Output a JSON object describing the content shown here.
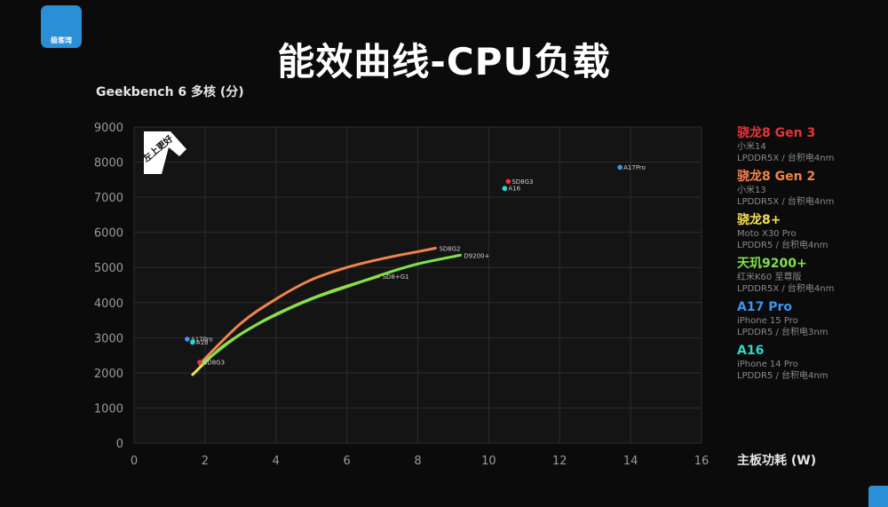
{
  "header": {
    "logo_text": "极客湾",
    "title": "能效曲线-CPU负载",
    "y_axis_label": "Geekbench 6 多核 (分)",
    "x_axis_label": "主板功耗 (W)",
    "badge_text": "左上更好"
  },
  "legend": [
    {
      "name": "骁龙8 Gen 3",
      "device": "小米14",
      "spec": "LPDDR5X / 台积电4nm",
      "color": "#e8343b"
    },
    {
      "name": "骁龙8 Gen 2",
      "device": "小米13",
      "spec": "LPDDR5X / 台积电4nm",
      "color": "#f3844b"
    },
    {
      "name": "骁龙8+",
      "device": "Moto X30 Pro",
      "spec": "LPDDR5 / 台积电4nm",
      "color": "#f5e04f"
    },
    {
      "name": "天玑9200+",
      "device": "红米K60 至尊版",
      "spec": "LPDDR5X / 台积电4nm",
      "color": "#7fe24a"
    },
    {
      "name": "A17 Pro",
      "device": "iPhone 15 Pro",
      "spec": "LPDDR5 / 台积电3nm",
      "color": "#3d95ee"
    },
    {
      "name": "A16",
      "device": "iPhone 14 Pro",
      "spec": "LPDDR5 / 台积电4nm",
      "color": "#2ed8c8"
    }
  ],
  "chart_data": {
    "type": "scatter",
    "title": "能效曲线-CPU负载",
    "xlabel": "主板功耗 (W)",
    "ylabel": "Geekbench 6 多核 (分)",
    "xlim": [
      0,
      16
    ],
    "ylim": [
      0,
      9000
    ],
    "x_ticks": [
      0,
      2,
      4,
      6,
      8,
      10,
      12,
      14,
      16
    ],
    "y_ticks": [
      0,
      1000,
      2000,
      3000,
      4000,
      5000,
      6000,
      7000,
      8000,
      9000
    ],
    "grid": true,
    "legend_position": "right",
    "curves": [
      {
        "name": "SD8G2",
        "color": "#f3844b",
        "points": [
          [
            1.85,
            2250
          ],
          [
            3,
            3400
          ],
          [
            4,
            4100
          ],
          [
            5,
            4650
          ],
          [
            6,
            5000
          ],
          [
            7,
            5250
          ],
          [
            8,
            5450
          ],
          [
            8.5,
            5550
          ]
        ],
        "label": "SD8G2"
      },
      {
        "name": "SD8+G1",
        "color": "#f5e04f",
        "points": [
          [
            1.65,
            1950
          ],
          [
            2.5,
            2750
          ],
          [
            3.5,
            3400
          ],
          [
            4.5,
            3900
          ],
          [
            5.5,
            4300
          ],
          [
            6.9,
            4750
          ]
        ],
        "label": "SD8+G1"
      },
      {
        "name": "D9200+",
        "color": "#7fe24a",
        "points": [
          [
            1.9,
            2250
          ],
          [
            3,
            3100
          ],
          [
            4,
            3650
          ],
          [
            5,
            4100
          ],
          [
            6,
            4450
          ],
          [
            7,
            4800
          ],
          [
            8,
            5100
          ],
          [
            9.2,
            5350
          ]
        ],
        "label": "D9200+"
      }
    ],
    "points": [
      {
        "name": "SD8G3",
        "x": 10.55,
        "y": 7450,
        "color": "#e8343b",
        "label": "SD8G3"
      },
      {
        "name": "A16",
        "x": 10.45,
        "y": 7250,
        "color": "#2ed8c8",
        "label": "A16"
      },
      {
        "name": "A17Pro",
        "x": 13.7,
        "y": 7850,
        "color": "#3d95ee",
        "label": "A17Pro"
      },
      {
        "name": "A17Pro",
        "x": 1.5,
        "y": 2960,
        "color": "#3d95ee",
        "label": "A17Pro"
      },
      {
        "name": "A16",
        "x": 1.65,
        "y": 2870,
        "color": "#2ed8c8",
        "label": "A16"
      },
      {
        "name": "SD8G3",
        "x": 1.85,
        "y": 2300,
        "color": "#e8343b",
        "label": "SD8G3"
      }
    ]
  }
}
